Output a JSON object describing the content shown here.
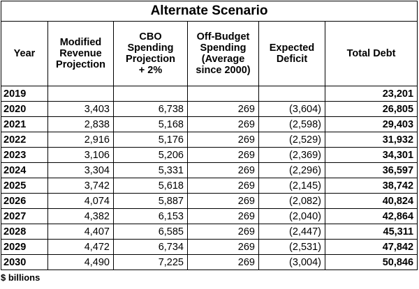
{
  "table": {
    "title": "Alternate Scenario",
    "headers": [
      "Year",
      "Modified\nRevenue\nProjection",
      "CBO\nSpending\nProjection\n+ 2%",
      "Off-Budget\nSpending\n(Average\nsince 2000)",
      "Expected\nDeficit",
      "Total Debt"
    ],
    "rows": [
      [
        "2019",
        null,
        null,
        null,
        null,
        "23,201"
      ],
      [
        "2020",
        "3,403",
        "6,738",
        "269",
        "(3,604)",
        "26,805"
      ],
      [
        "2021",
        "2,838",
        "5,168",
        "269",
        "(2,598)",
        "29,403"
      ],
      [
        "2022",
        "2,916",
        "5,176",
        "269",
        "(2,529)",
        "31,932"
      ],
      [
        "2023",
        "3,106",
        "5,206",
        "269",
        "(2,369)",
        "34,301"
      ],
      [
        "2024",
        "3,304",
        "5,331",
        "269",
        "(2,296)",
        "36,597"
      ],
      [
        "2025",
        "3,742",
        "5,618",
        "269",
        "(2,145)",
        "38,742"
      ],
      [
        "2026",
        "4,074",
        "5,887",
        "269",
        "(2,082)",
        "40,824"
      ],
      [
        "2027",
        "4,382",
        "6,153",
        "269",
        "(2,040)",
        "42,864"
      ],
      [
        "2028",
        "4,407",
        "6,585",
        "269",
        "(2,447)",
        "45,311"
      ],
      [
        "2029",
        "4,472",
        "6,734",
        "269",
        "(2,531)",
        "47,842"
      ],
      [
        "2030",
        "4,490",
        "7,225",
        "269",
        "(3,004)",
        "50,846"
      ]
    ],
    "note": "$ billions"
  }
}
